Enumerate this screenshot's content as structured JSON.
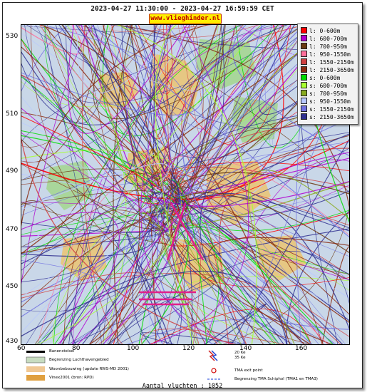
{
  "header": {
    "time_range": "2023-04-27 11:30:00 - 2023-04-27 16:59:59 CET",
    "site": "www.vlieghinder.nl"
  },
  "axes": {
    "y_ticks": [
      "530",
      "510",
      "490",
      "470",
      "450",
      "430"
    ],
    "x_ticks": [
      "80",
      "100",
      "120",
      "140",
      "160"
    ],
    "x_start": "60"
  },
  "legend": {
    "items": [
      {
        "label": "l: 0-600m",
        "color": "#ff0000"
      },
      {
        "label": "l: 600-700m",
        "color": "#b000d0"
      },
      {
        "label": "l: 700-950m",
        "color": "#6a3a10"
      },
      {
        "label": "l: 950-1550m",
        "color": "#ff6f9a"
      },
      {
        "label": "l: 1550-2150m",
        "color": "#d04040"
      },
      {
        "label": "l: 2150-3650m",
        "color": "#8a2a10"
      },
      {
        "label": "s: 0-600m",
        "color": "#00dd00"
      },
      {
        "label": "s: 600-700m",
        "color": "#a8ff30"
      },
      {
        "label": "s: 700-950m",
        "color": "#88aa20"
      },
      {
        "label": "s: 950-1550m",
        "color": "#b8c8ff"
      },
      {
        "label": "s: 1550-2150m",
        "color": "#7070e0"
      },
      {
        "label": "s: 2150-3650m",
        "color": "#303090"
      }
    ]
  },
  "map_legend": {
    "runway": "Banenstelsel",
    "airport_boundary": "Begrenzing Luchthavengebied",
    "housing": "Woonbebouwing (update RWS-MD 2001)",
    "vinex": "Vinex2001 (bron: RPD)",
    "ke20": "20 Ke",
    "ke35": "35 Ke",
    "tma_exit": "TMA exit point",
    "tma_boundary": "Begrenzing TMA Schiphol  (TMA1 en TMA3)"
  },
  "footer": {
    "count": "Aantal vluchten : 1052"
  },
  "colors": {
    "land": "#c9d7e8",
    "housing": "#e8c87a",
    "green_area": "#a6d59a"
  }
}
